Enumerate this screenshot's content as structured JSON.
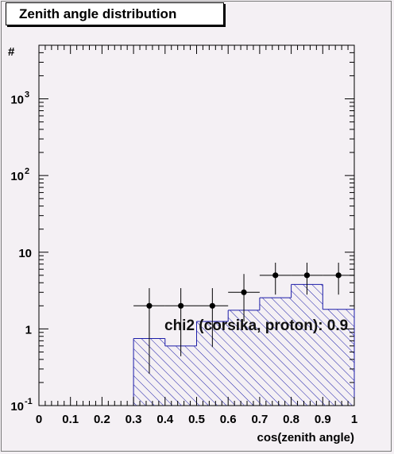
{
  "chart_data": {
    "type": "histogram",
    "title": "Zenith angle distribution",
    "xlabel": "cos(zenith angle)",
    "ylabel": "#",
    "xlim": [
      0,
      1
    ],
    "ylim": [
      0.1,
      5000
    ],
    "log_y": true,
    "grid": false,
    "x_ticks": [
      {
        "value": 0,
        "label": "0"
      },
      {
        "value": 0.1,
        "label": "0.1"
      },
      {
        "value": 0.2,
        "label": "0.2"
      },
      {
        "value": 0.3,
        "label": "0.3"
      },
      {
        "value": 0.4,
        "label": "0.4"
      },
      {
        "value": 0.5,
        "label": "0.5"
      },
      {
        "value": 0.6,
        "label": "0.6"
      },
      {
        "value": 0.7,
        "label": "0.7"
      },
      {
        "value": 0.8,
        "label": "0.8"
      },
      {
        "value": 0.9,
        "label": "0.9"
      },
      {
        "value": 1,
        "label": "1"
      }
    ],
    "y_ticks": [
      {
        "value": 0.1,
        "base": "10",
        "exp": "-1"
      },
      {
        "value": 1,
        "base": "1",
        "exp": ""
      },
      {
        "value": 10,
        "base": "10",
        "exp": ""
      },
      {
        "value": 100,
        "base": "10",
        "exp": "2"
      },
      {
        "value": 1000,
        "base": "10",
        "exp": "3"
      }
    ],
    "mc_hist": {
      "bin_edges": [
        0.3,
        0.4,
        0.5,
        0.6,
        0.7,
        0.8,
        0.9,
        1.0
      ],
      "values": [
        0.75,
        0.6,
        1.25,
        1.75,
        2.55,
        3.8,
        1.8
      ],
      "color": "#1c1ca8"
    },
    "data_points": [
      {
        "x": 0.35,
        "y": 2,
        "xerr": 0.05,
        "ylo": 0.26,
        "yhi": 3.4
      },
      {
        "x": 0.45,
        "y": 2,
        "xerr": 0.05,
        "ylo": 0.44,
        "yhi": 3.4
      },
      {
        "x": 0.55,
        "y": 2,
        "xerr": 0.05,
        "ylo": 0.58,
        "yhi": 3.4
      },
      {
        "x": 0.65,
        "y": 3,
        "xerr": 0.05,
        "ylo": 1.25,
        "yhi": 5.2
      },
      {
        "x": 0.75,
        "y": 5,
        "xerr": 0.05,
        "ylo": 2.8,
        "yhi": 7.3
      },
      {
        "x": 0.85,
        "y": 5,
        "xerr": 0.05,
        "ylo": 2.8,
        "yhi": 7.3
      },
      {
        "x": 0.95,
        "y": 5,
        "xerr": 0.05,
        "ylo": 2.8,
        "yhi": 7.3
      }
    ],
    "annotation": "chi2 (corsika, proton): 0.9"
  }
}
